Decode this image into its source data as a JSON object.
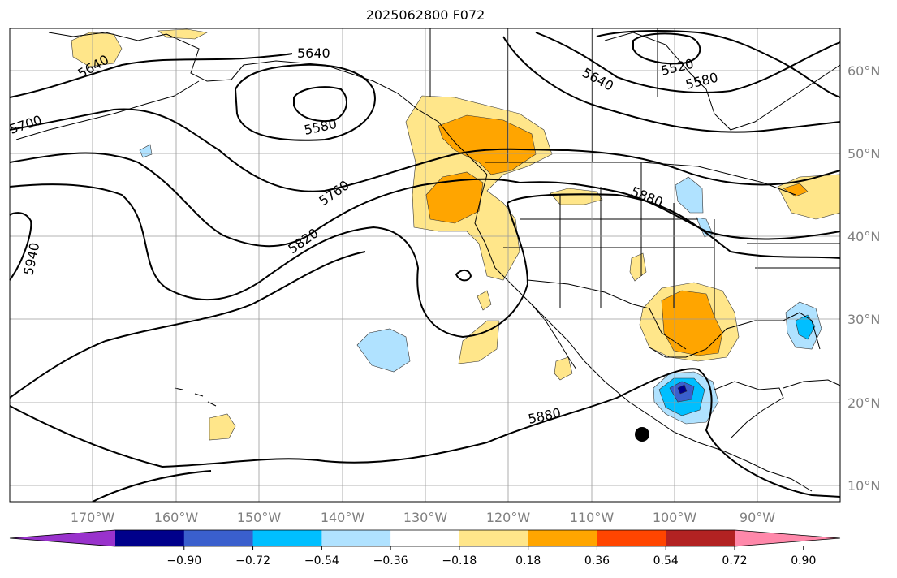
{
  "title": "2025062800 F072",
  "map": {
    "lon_range": [
      -180,
      -80
    ],
    "lat_range": [
      8,
      65
    ],
    "lat_labels": [
      "60°N",
      "50°N",
      "40°N",
      "30°N",
      "20°N",
      "10°N"
    ],
    "lon_labels": [
      "170°W",
      "160°W",
      "150°W",
      "140°W",
      "130°W",
      "120°W",
      "110°W",
      "100°W",
      "90°W"
    ],
    "contour_labels": [
      "5640",
      "5640",
      "5700",
      "5580",
      "5640",
      "5520",
      "5580",
      "5760",
      "5880",
      "5820",
      "5940",
      "5880"
    ],
    "marker": "hurricane-center-dot"
  },
  "colorbar": {
    "ticks": [
      "−0.90",
      "−0.72",
      "−0.54",
      "−0.36",
      "−0.18",
      "0.18",
      "0.36",
      "0.54",
      "0.72",
      "0.90"
    ],
    "colors": [
      "#9932cc",
      "#00008b",
      "#3a5fcd",
      "#00bfff",
      "#b0e2ff",
      "#ffffff",
      "#ffe68a",
      "#ffa500",
      "#ff4500",
      "#b22222",
      "#ff88aa"
    ]
  }
}
